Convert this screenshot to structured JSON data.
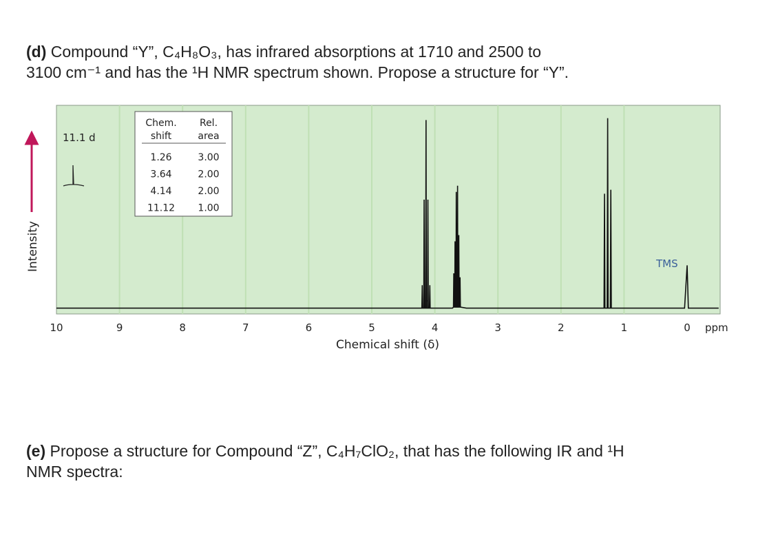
{
  "question_d": {
    "letter": "(d)",
    "line1": " Compound “Y”, C₄H₈O₃, has infrared absorptions at 1710 and 2500 to",
    "line2": "3100 cm⁻¹ and has the ¹H NMR spectrum shown. Propose a structure for “Y”."
  },
  "question_e": {
    "letter": "(e)",
    "line1": " Propose a structure for Compound “Z”, C₄H₇ClO₂, that has the following IR and ¹H",
    "line2": "NMR spectra:"
  },
  "chart_data": {
    "type": "line",
    "xlabel": "Chemical shift (δ)",
    "ylabel": "Intensity",
    "x_unit": "ppm",
    "xlim": [
      10,
      0
    ],
    "x_ticks": [
      "10",
      "9",
      "8",
      "7",
      "6",
      "5",
      "4",
      "3",
      "2",
      "1",
      "0"
    ],
    "grid": true,
    "colors": {
      "background": "#d4ebce",
      "gridline": "#bfe0b4",
      "trace": "#111111",
      "arrow": "#c0175a"
    },
    "peaks": [
      {
        "shift": 11.12,
        "height": 0.0,
        "label": "11.1 d",
        "note": "off-scale inset"
      },
      {
        "shift": 4.14,
        "height": 0.95,
        "multiplicity": "quartet"
      },
      {
        "shift": 3.64,
        "height": 0.62,
        "multiplicity": "singlet"
      },
      {
        "shift": 1.26,
        "height": 0.96,
        "multiplicity": "triplet"
      },
      {
        "shift": 0.0,
        "height": 0.22,
        "label": "TMS"
      }
    ],
    "table": {
      "headers": [
        [
          "Chem.",
          "shift"
        ],
        [
          "Rel.",
          "area"
        ]
      ],
      "rows": [
        [
          "1.26",
          "3.00"
        ],
        [
          "3.64",
          "2.00"
        ],
        [
          "4.14",
          "2.00"
        ],
        [
          "11.12",
          "1.00"
        ]
      ]
    },
    "inset_label": "11.1 d",
    "tms_label": "TMS"
  }
}
